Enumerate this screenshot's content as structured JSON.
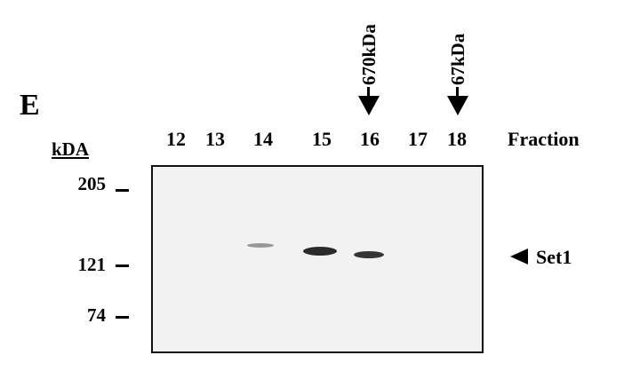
{
  "panel_letter": "E",
  "markers": [
    {
      "label": "670kDa",
      "lane": "16"
    },
    {
      "label": "67kDa",
      "lane": "18"
    }
  ],
  "lanes": [
    "12",
    "13",
    "14",
    "15",
    "16",
    "17",
    "18"
  ],
  "fraction_label": "Fraction",
  "mw_unit": "kDA",
  "mw_markers": [
    "205",
    "121",
    "74"
  ],
  "band_label": "Set1",
  "bands": [
    {
      "lane": "14",
      "intensity": 0.35
    },
    {
      "lane": "15",
      "intensity": 0.9
    },
    {
      "lane": "16",
      "intensity": 0.85
    }
  ]
}
